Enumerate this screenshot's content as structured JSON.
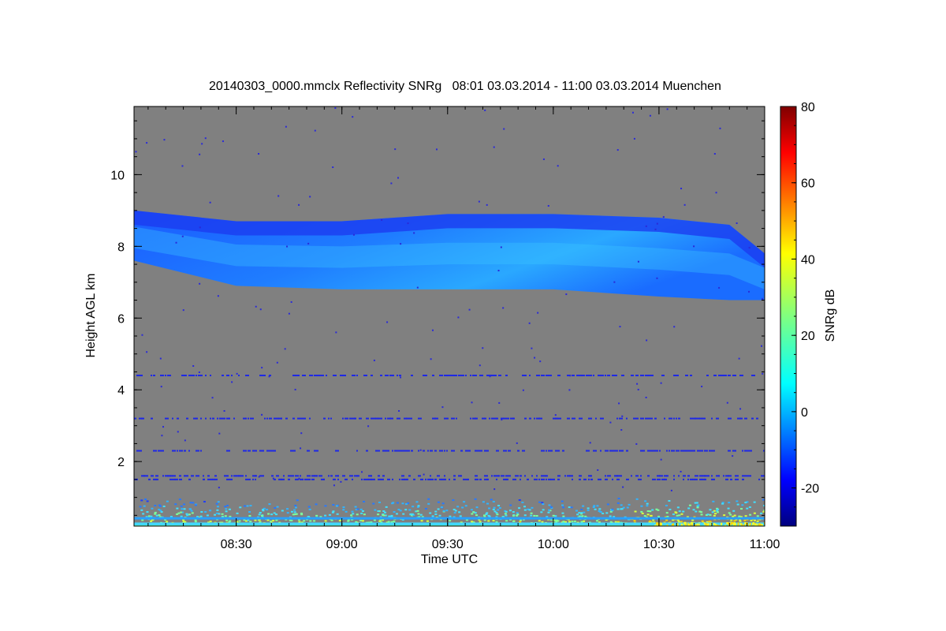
{
  "chart_data": {
    "type": "heatmap",
    "title": "20140303_0000.mmclx Reflectivity SNRg   08:01 03.03.2014 - 11:00 03.03.2014 Muenchen",
    "xlabel": "Time UTC",
    "ylabel": "Height AGL km",
    "colorbar_label": "SNRg dB",
    "x_range": [
      "08:01",
      "11:00"
    ],
    "x_ticks": [
      "08:30",
      "09:00",
      "09:30",
      "10:00",
      "10:30",
      "11:00"
    ],
    "y_range": [
      0.2,
      11.9
    ],
    "y_ticks": [
      "2",
      "4",
      "6",
      "8",
      "10"
    ],
    "colorbar_range": [
      -30,
      80
    ],
    "colorbar_ticks": [
      "-20",
      "0",
      "20",
      "40",
      "60",
      "80"
    ],
    "colormap": "jet",
    "background_color": "#808080",
    "cloud_layer": {
      "start": "08:01",
      "end": "11:00",
      "top_km": [
        9.0,
        8.7,
        8.7,
        8.9,
        8.9,
        8.8,
        8.6,
        7.8
      ],
      "base_km": [
        7.6,
        6.9,
        6.8,
        6.8,
        6.8,
        6.6,
        6.5,
        6.5
      ],
      "top_times": [
        "08:01",
        "08:30",
        "09:00",
        "09:30",
        "10:00",
        "10:30",
        "10:50",
        "11:00"
      ],
      "snr_db_range": [
        -20,
        5
      ]
    },
    "noise_lines_km": [
      4.4,
      3.2,
      2.3,
      1.6,
      1.5
    ],
    "ground_clutter_top_km": 1.0
  }
}
